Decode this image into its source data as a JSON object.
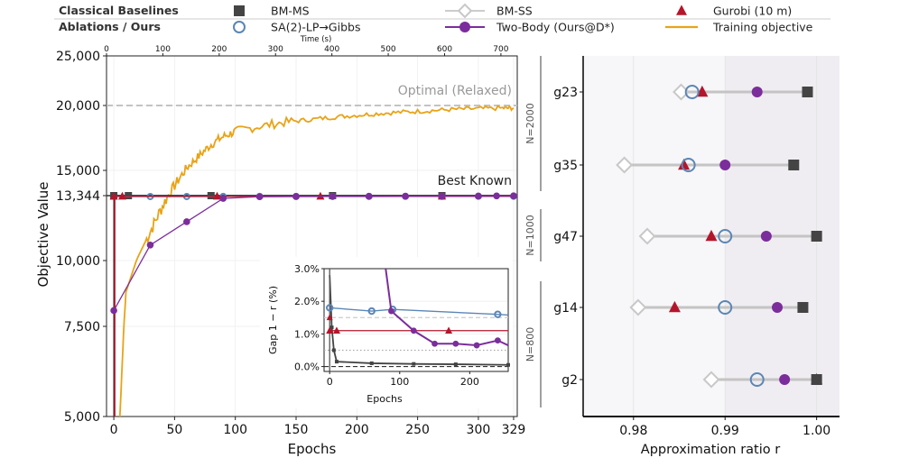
{
  "legend": {
    "row_titles": [
      "Classical Baselines",
      "Ablations / Ours"
    ],
    "entries": [
      {
        "key": "bm_ms",
        "label": "BM-MS",
        "marker": "square",
        "color": "#444444"
      },
      {
        "key": "bm_ss",
        "label": "BM-SS",
        "marker": "diamond-open",
        "color": "#c8c8c8"
      },
      {
        "key": "gurobi",
        "label": "Gurobi (10 m)",
        "marker": "triangle",
        "color": "#b5152b"
      },
      {
        "key": "sa2",
        "label": "SA(2)-LP→Gibbs",
        "marker": "circle-open",
        "color": "#5b86b5"
      },
      {
        "key": "twobody",
        "label": "Two-Body (Ours@D*)",
        "marker": "circle-line",
        "color": "#7b2d9b"
      },
      {
        "key": "training",
        "label": "Training objective",
        "marker": "line",
        "color": "#e8a317"
      }
    ]
  },
  "chart_data": [
    {
      "type": "line",
      "id": "main",
      "xlabel": "Epochs",
      "ylabel": "Objective Value",
      "top_xlabel": "Time (s)",
      "top_xticks": [
        0,
        100,
        200,
        300,
        400,
        500,
        600,
        700
      ],
      "top_xlim": [
        0,
        729
      ],
      "xlim": [
        -6,
        332
      ],
      "xticks": [
        0,
        50,
        100,
        150,
        200,
        250,
        300,
        329
      ],
      "yticks": [
        5000,
        7500,
        10000,
        13344,
        15000,
        20000,
        25000
      ],
      "ytick_labels": [
        "5,000",
        "7,500",
        "10,000",
        "13,344",
        "15,000",
        "20,000",
        "25,000"
      ],
      "y_scale_note": "nonlinear y axis, ticks unevenly spaced",
      "reference_lines": [
        {
          "label": "Optimal (Relaxed)",
          "y": 20000,
          "color": "#bbbbbb"
        },
        {
          "label": "Best Known",
          "y": 13344,
          "color": "#333333"
        }
      ],
      "series": [
        {
          "key": "bm_ms",
          "name": "BM-MS",
          "x": [
            0,
            12,
            80,
            180,
            270
          ],
          "y": [
            13344,
            13344,
            13344,
            13344,
            13344
          ]
        },
        {
          "key": "sa2",
          "name": "SA(2)-LP→Gibbs",
          "x": [
            30,
            60,
            90,
            120,
            150,
            180,
            210,
            240,
            270,
            300,
            329
          ],
          "y": [
            13300,
            13300,
            13302,
            13303,
            13304,
            13305,
            13306,
            13307,
            13308,
            13310,
            13310
          ]
        },
        {
          "key": "gurobi",
          "name": "Gurobi (10 m)",
          "x": [
            0,
            7,
            85,
            170,
            270
          ],
          "y": [
            13300,
            13310,
            13310,
            13310,
            13310
          ]
        },
        {
          "key": "twobody",
          "name": "Two-Body (Ours@D*)",
          "x": [
            0,
            30,
            60,
            90,
            120,
            150,
            180,
            210,
            240,
            270,
            300,
            315,
            329
          ],
          "y": [
            8100,
            10800,
            12000,
            13200,
            13290,
            13300,
            13305,
            13310,
            13315,
            13320,
            13325,
            13330,
            13335
          ]
        },
        {
          "key": "training",
          "name": "Training objective",
          "x": [
            5,
            10,
            20,
            30,
            40,
            50,
            60,
            70,
            80,
            90,
            100,
            120,
            140,
            160,
            180,
            200,
            220,
            240,
            260,
            280,
            300,
            320,
            329
          ],
          "y": [
            5000,
            8800,
            10200,
            11500,
            12800,
            14000,
            15200,
            16100,
            17000,
            17600,
            18000,
            18400,
            18700,
            18900,
            19100,
            19250,
            19400,
            19500,
            19600,
            19700,
            19750,
            19800,
            19800
          ]
        }
      ]
    },
    {
      "type": "line",
      "id": "inset",
      "xlabel": "Epochs",
      "ylabel": "Gap 1 − r (%)",
      "xlim": [
        -8,
        255
      ],
      "ylim": [
        -0.15,
        3.0
      ],
      "xticks": [
        0,
        100,
        200
      ],
      "yticks": [
        0.0,
        1.0,
        2.0,
        3.0
      ],
      "ytick_labels": [
        "0.0%",
        "1.0%",
        "2.0%",
        "3.0%"
      ],
      "reference_lines": [
        {
          "y": 0.0,
          "style": "dashed",
          "color": "#333333"
        },
        {
          "y": 0.5,
          "style": "dotted",
          "color": "#aaaaaa"
        },
        {
          "y": 1.5,
          "style": "dashed",
          "color": "#cccccc"
        }
      ],
      "series": [
        {
          "key": "sa2",
          "name": "SA(2)-LP→Gibbs",
          "x": [
            0,
            60,
            90,
            240
          ],
          "y": [
            1.8,
            1.7,
            1.75,
            1.6
          ]
        },
        {
          "key": "gurobi",
          "name": "Gurobi (10 m)",
          "x": [
            0,
            10,
            170
          ],
          "y": [
            1.1,
            1.1,
            1.1
          ]
        },
        {
          "key": "twobody",
          "name": "Two-Body (Ours@D*)",
          "x": [
            80,
            88,
            120,
            150,
            180,
            210,
            240,
            255
          ],
          "y": [
            3.0,
            1.7,
            1.1,
            0.7,
            0.7,
            0.65,
            0.8,
            0.65
          ]
        },
        {
          "key": "bm_ms",
          "name": "BM-MS",
          "x": [
            0,
            3,
            6,
            10,
            60,
            120,
            180,
            255
          ],
          "y": [
            2.8,
            1.2,
            0.5,
            0.15,
            0.1,
            0.08,
            0.07,
            0.05
          ]
        }
      ]
    },
    {
      "type": "dot",
      "id": "ratio",
      "xlabel": "Approximation ratio r",
      "xlim": [
        0.9745,
        1.0025
      ],
      "xticks": [
        0.98,
        0.99,
        1.0
      ],
      "xtick_labels": [
        "0.98",
        "0.99",
        "1.00"
      ],
      "groups": [
        {
          "label": "N=2000",
          "items": [
            "g23",
            "g35"
          ]
        },
        {
          "label": "N=1000",
          "items": [
            "g47"
          ]
        },
        {
          "label": "N=800",
          "items": [
            "g14",
            "g2"
          ]
        }
      ],
      "rows": [
        {
          "label": "g23",
          "bm_ss": 0.9852,
          "sa2": 0.9864,
          "gurobi": 0.9875,
          "twobody": 0.9935,
          "bm_ms": 0.999
        },
        {
          "label": "g35",
          "bm_ss": 0.979,
          "sa2": 0.986,
          "gurobi": 0.9855,
          "twobody": 0.99,
          "bm_ms": 0.9975
        },
        {
          "label": "g47",
          "bm_ss": 0.9815,
          "sa2": 0.99,
          "gurobi": 0.9885,
          "twobody": 0.9945,
          "bm_ms": 1.0
        },
        {
          "label": "g14",
          "bm_ss": 0.9805,
          "sa2": 0.99,
          "gurobi": 0.9845,
          "twobody": 0.9957,
          "bm_ms": 0.9985
        },
        {
          "label": "g2",
          "bm_ss": 0.9885,
          "sa2": 0.9935,
          "gurobi": 1.0,
          "twobody": 0.9965,
          "bm_ms": 1.0
        }
      ]
    }
  ]
}
